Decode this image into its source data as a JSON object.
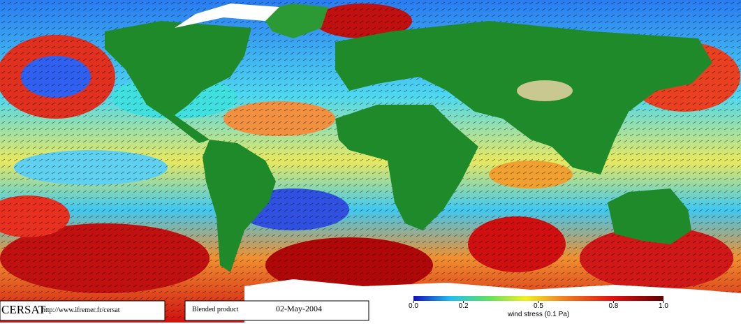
{
  "footer": {
    "brand": "CERSAT",
    "url": "http://www.ifremer.fr/cersat",
    "product": "Blended product",
    "date": "02-May-2004"
  },
  "colorbar": {
    "label": "wind stress (0.1 Pa)",
    "lim": [
      0,
      1
    ],
    "ticks": [
      {
        "value": 0,
        "label": "0.0"
      },
      {
        "value": 0.2,
        "label": "0.2"
      },
      {
        "value": 0.5,
        "label": "0.5"
      },
      {
        "value": 0.8,
        "label": "0.8"
      },
      {
        "value": 1,
        "label": "1.0"
      }
    ]
  }
}
